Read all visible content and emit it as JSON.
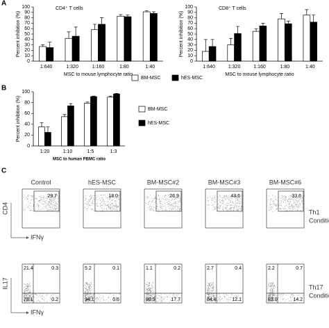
{
  "chart_data": [
    {
      "type": "bar",
      "title": "CD4⁺ T cells",
      "ylabel": "Percent inhibition (%)",
      "xlabel": "MSC to mouse lymphocyte ratio",
      "categories": [
        "1:640",
        "1:320",
        "1:160",
        "1:80",
        "1:40"
      ],
      "series": [
        {
          "name": "BM-MSC",
          "color": "#ffffff",
          "values": [
            27,
            42,
            58,
            83,
            91
          ],
          "errors": [
            3,
            12,
            10,
            3,
            2
          ]
        },
        {
          "name": "hES-MSC",
          "color": "#000000",
          "values": [
            25,
            46,
            68,
            82,
            88
          ],
          "errors": [
            10,
            17,
            12,
            3,
            3
          ]
        }
      ],
      "ylim": [
        0,
        100
      ],
      "yticks": [
        0,
        10,
        20,
        30,
        40,
        50,
        60,
        70,
        80,
        90,
        100
      ],
      "legend": "below"
    },
    {
      "type": "bar",
      "title": "CD8⁺ T cells",
      "ylabel": "Percent inhibition (%)",
      "xlabel": "MSC to mouse lymphocyte ratio",
      "categories": [
        "1:640",
        "1:320",
        "1:160",
        "1:80",
        "1:40"
      ],
      "series": [
        {
          "name": "BM-MSC",
          "color": "#ffffff",
          "values": [
            18,
            30,
            55,
            78,
            85
          ],
          "errors": [
            22,
            12,
            5,
            10,
            10
          ]
        },
        {
          "name": "hES-MSC",
          "color": "#000000",
          "values": [
            27,
            51,
            65,
            69,
            72
          ],
          "errors": [
            13,
            13,
            5,
            5,
            13
          ]
        }
      ],
      "ylim": [
        0,
        100
      ],
      "yticks": [
        0,
        10,
        20,
        30,
        40,
        50,
        60,
        70,
        80,
        90,
        100
      ]
    },
    {
      "type": "bar",
      "ylabel": "Percent inhibition (%)",
      "xlabel": "MSC to human PBMC ratio",
      "categories": [
        "1:20",
        "1:10",
        "1:5",
        "1:3"
      ],
      "series": [
        {
          "name": "BM-MSC",
          "color": "#ffffff",
          "values": [
            35,
            54,
            79,
            90
          ],
          "errors": [
            8,
            4,
            2,
            2
          ]
        },
        {
          "name": "hES-MSC",
          "color": "#000000",
          "values": [
            25,
            74,
            91,
            96
          ],
          "errors": [
            10,
            4,
            1,
            1
          ]
        }
      ],
      "ylim": [
        0,
        100
      ],
      "yticks": [
        0,
        20,
        40,
        60,
        80,
        100
      ],
      "legend": "right"
    }
  ],
  "panels": [
    "A",
    "B",
    "C"
  ],
  "flow": {
    "columns": [
      "Control",
      "hES-MSC",
      "BM-MSC#2",
      "BM-MSC#3",
      "BM-MSC#6"
    ],
    "th1": {
      "ylabel": "CD4",
      "xlabel": "IFNγ",
      "condition": [
        "Th1",
        "Condition"
      ],
      "values": [
        "29.7",
        "18.0",
        "26.9",
        "43.6",
        "33.6"
      ]
    },
    "th17": {
      "ylabel": "IL17",
      "xlabel": "IFNγ",
      "condition": [
        "Th17",
        "Condition"
      ],
      "quadrants": [
        [
          "21.4",
          "0.3",
          "78.1",
          "0.2"
        ],
        [
          "5.2",
          "0.1",
          "94.1",
          "0.6"
        ],
        [
          "1.1",
          "0.2",
          "80.9",
          "17.7"
        ],
        [
          "2.7",
          "0.4",
          "84.8",
          "12.1"
        ],
        [
          "2.2",
          "0.7",
          "83.0",
          "14.2"
        ]
      ]
    }
  }
}
